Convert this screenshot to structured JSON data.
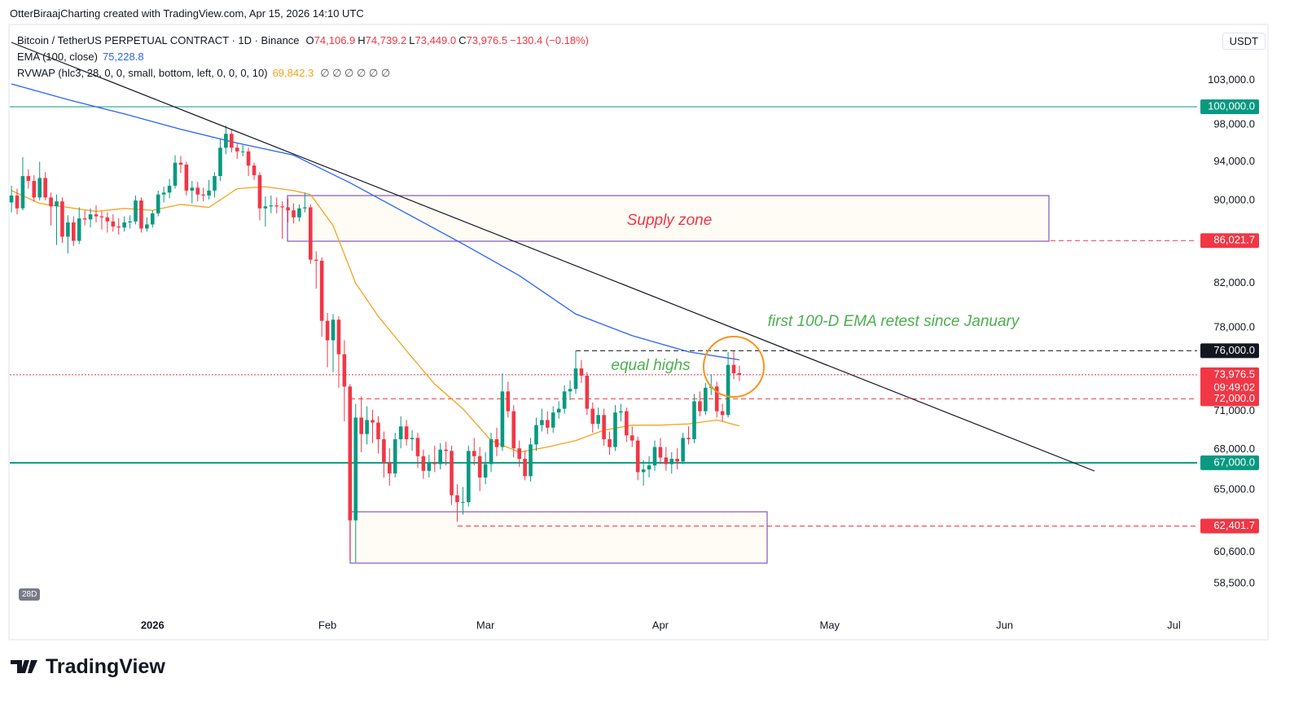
{
  "header": "OtterBiraajCharting created with TradingView.com, Apr 15, 2026 14:10 UTC",
  "chart_data": {
    "type": "candlestick",
    "symbol": "Bitcoin / TetherUS PERPETUAL CONTRACT · 1D · Binance",
    "ohlc_legend": [
      {
        "key": "O",
        "value": "74,106.9"
      },
      {
        "key": "H",
        "value": "74,739.2"
      },
      {
        "key": "L",
        "value": "73,449.0"
      },
      {
        "key": "C",
        "value": "73,976.5"
      }
    ],
    "change": "−130.4 (−0.18%)",
    "currency": "USDT",
    "badge": "28D",
    "up_color": "#089981",
    "down_color": "#f23645",
    "log_scale": true,
    "ohlc": [
      [
        89800,
        91500,
        88800,
        90500
      ],
      [
        90500,
        91200,
        88600,
        89200
      ],
      [
        89200,
        94500,
        89000,
        92500
      ],
      [
        92500,
        93200,
        91200,
        92000
      ],
      [
        92000,
        92600,
        89900,
        90300
      ],
      [
        90300,
        94000,
        90000,
        92300
      ],
      [
        92300,
        92900,
        90000,
        90300
      ],
      [
        90300,
        90800,
        87500,
        89400
      ],
      [
        89400,
        90600,
        85600,
        89900
      ],
      [
        89900,
        90300,
        85800,
        86400
      ],
      [
        86400,
        88500,
        84800,
        87800
      ],
      [
        87800,
        88400,
        85500,
        86000
      ],
      [
        86000,
        89300,
        85700,
        88200
      ],
      [
        88200,
        89000,
        87500,
        88100
      ],
      [
        88100,
        89200,
        87300,
        88600
      ],
      [
        88600,
        89500,
        87800,
        88400
      ],
      [
        88400,
        88900,
        87100,
        88300
      ],
      [
        88300,
        88800,
        86800,
        87900
      ],
      [
        87900,
        88600,
        86900,
        87400
      ],
      [
        87400,
        88200,
        86600,
        87300
      ],
      [
        87300,
        88400,
        86900,
        87800
      ],
      [
        87800,
        88500,
        87200,
        87900
      ],
      [
        87900,
        90500,
        87600,
        90000
      ],
      [
        90000,
        90300,
        86800,
        87200
      ],
      [
        87200,
        88300,
        86900,
        87600
      ],
      [
        87600,
        89000,
        87300,
        88700
      ],
      [
        88700,
        91000,
        88400,
        90600
      ],
      [
        90600,
        91400,
        89800,
        90800
      ],
      [
        90800,
        92200,
        90200,
        91500
      ],
      [
        91500,
        94700,
        91200,
        93900
      ],
      [
        93900,
        94600,
        92800,
        93700
      ],
      [
        93700,
        94000,
        90500,
        91000
      ],
      [
        91000,
        92000,
        89700,
        91300
      ],
      [
        91300,
        91900,
        89900,
        90600
      ],
      [
        90600,
        91300,
        89900,
        90500
      ],
      [
        90500,
        92100,
        90100,
        91000
      ],
      [
        91000,
        92900,
        90300,
        92500
      ],
      [
        92500,
        96400,
        92000,
        95500
      ],
      [
        95500,
        97900,
        94800,
        97000
      ],
      [
        97000,
        97500,
        95000,
        95500
      ],
      [
        95500,
        96000,
        94300,
        95100
      ],
      [
        95100,
        95800,
        94600,
        95100
      ],
      [
        95100,
        95500,
        92500,
        93600
      ],
      [
        93600,
        93900,
        92100,
        92600
      ],
      [
        92600,
        92900,
        88000,
        89200
      ],
      [
        89200,
        90400,
        87400,
        89400
      ],
      [
        89400,
        90500,
        88700,
        89500
      ],
      [
        89500,
        90300,
        88700,
        89400
      ],
      [
        89400,
        89900,
        86200,
        89300
      ],
      [
        89300,
        90200,
        87800,
        89000
      ],
      [
        89000,
        89700,
        87700,
        88300
      ],
      [
        88300,
        89600,
        87900,
        89200
      ],
      [
        89200,
        90800,
        88800,
        89300
      ],
      [
        89300,
        89600,
        83800,
        84200
      ],
      [
        84200,
        85000,
        81500,
        84100
      ],
      [
        84100,
        84400,
        77200,
        78600
      ],
      [
        78600,
        79300,
        74600,
        76900
      ],
      [
        76900,
        79200,
        74200,
        78700
      ],
      [
        78700,
        79000,
        72900,
        75700
      ],
      [
        75700,
        76900,
        70200,
        73000
      ],
      [
        73000,
        73200,
        60100,
        62800
      ],
      [
        62800,
        71600,
        59900,
        70500
      ],
      [
        70500,
        72200,
        67800,
        69200
      ],
      [
        69200,
        71400,
        68400,
        70300
      ],
      [
        70300,
        71100,
        68500,
        70100
      ],
      [
        70100,
        70600,
        67700,
        68800
      ],
      [
        68800,
        69400,
        65900,
        67000
      ],
      [
        67000,
        68100,
        65300,
        66200
      ],
      [
        66200,
        69300,
        65900,
        68800
      ],
      [
        68800,
        70600,
        68100,
        69800
      ],
      [
        69800,
        70300,
        68300,
        68800
      ],
      [
        68800,
        69500,
        67900,
        68900
      ],
      [
        68900,
        69300,
        66600,
        67500
      ],
      [
        67500,
        68000,
        65800,
        66400
      ],
      [
        66400,
        67600,
        65900,
        67000
      ],
      [
        67000,
        68300,
        66300,
        66900
      ],
      [
        66900,
        68500,
        66500,
        68000
      ],
      [
        68000,
        68600,
        66800,
        67900
      ],
      [
        67900,
        68300,
        63900,
        64600
      ],
      [
        64600,
        65400,
        62700,
        64100
      ],
      [
        64100,
        65200,
        63200,
        64100
      ],
      [
        64100,
        68300,
        63800,
        67900
      ],
      [
        67900,
        68900,
        66800,
        67500
      ],
      [
        67500,
        68200,
        64900,
        65900
      ],
      [
        65900,
        67800,
        65400,
        66900
      ],
      [
        66900,
        69300,
        66300,
        68800
      ],
      [
        68800,
        69700,
        67500,
        68200
      ],
      [
        68200,
        74100,
        67900,
        72600
      ],
      [
        72600,
        73400,
        70500,
        71000
      ],
      [
        71000,
        71500,
        67400,
        68100
      ],
      [
        68100,
        68700,
        66700,
        67300
      ],
      [
        67300,
        67900,
        65700,
        66000
      ],
      [
        66000,
        68900,
        65600,
        68400
      ],
      [
        68400,
        70500,
        67900,
        69900
      ],
      [
        69900,
        71200,
        69400,
        70300
      ],
      [
        70300,
        71000,
        69200,
        69700
      ],
      [
        69700,
        71400,
        69300,
        70900
      ],
      [
        70900,
        71800,
        70400,
        71200
      ],
      [
        71200,
        73100,
        70800,
        72600
      ],
      [
        72600,
        73500,
        71900,
        72800
      ],
      [
        72800,
        76000,
        72400,
        74500
      ],
      [
        74500,
        75200,
        73300,
        73900
      ],
      [
        73900,
        74200,
        70700,
        71200
      ],
      [
        71200,
        71700,
        69300,
        70000
      ],
      [
        70000,
        71300,
        69600,
        70700
      ],
      [
        70700,
        71200,
        68300,
        68800
      ],
      [
        68800,
        69400,
        67600,
        68200
      ],
      [
        68200,
        71500,
        67900,
        70900
      ],
      [
        70900,
        71600,
        70200,
        71000
      ],
      [
        71000,
        71300,
        68600,
        69100
      ],
      [
        69100,
        69800,
        68200,
        68700
      ],
      [
        68700,
        69000,
        65700,
        66300
      ],
      [
        66300,
        67200,
        65300,
        66500
      ],
      [
        66500,
        67500,
        65900,
        66800
      ],
      [
        66800,
        68700,
        66400,
        68200
      ],
      [
        68200,
        68900,
        66900,
        67400
      ],
      [
        67400,
        68200,
        66400,
        66900
      ],
      [
        66900,
        67800,
        66200,
        67300
      ],
      [
        67300,
        68100,
        66500,
        67100
      ],
      [
        67100,
        69300,
        66900,
        68900
      ],
      [
        68900,
        69800,
        68400,
        68800
      ],
      [
        68800,
        72400,
        68500,
        71800
      ],
      [
        71800,
        72600,
        70600,
        71000
      ],
      [
        71000,
        73300,
        70700,
        72900
      ],
      [
        72900,
        74000,
        72300,
        73000
      ],
      [
        73000,
        73400,
        70500,
        71000
      ],
      [
        71000,
        71600,
        70200,
        70700
      ],
      [
        70700,
        75900,
        70500,
        74800
      ],
      [
        74800,
        76000,
        73600,
        74100
      ],
      [
        74106.9,
        74739.2,
        73449.0,
        73976.5
      ]
    ],
    "indicators": [
      {
        "name": "EMA (100, close)",
        "value_label": "75,228.8",
        "color": "#2962ff",
        "x": [
          0,
          10,
          20,
          30,
          40,
          50,
          60,
          70,
          80,
          90,
          100,
          110,
          120,
          129
        ],
        "values": [
          102600,
          100800,
          99200,
          97500,
          96000,
          94700,
          91800,
          88700,
          85700,
          82700,
          79200,
          77300,
          75900,
          75228.8
        ]
      },
      {
        "name": "RVWAP (hlc3, 28, 0, 0, small, bottom, left, 0, 0, 0, 10)",
        "value_label": "69,842.3",
        "extra": "∅ ∅ ∅ ∅ ∅ ∅",
        "color": "#f7a21b",
        "x": [
          0,
          5,
          10,
          15,
          20,
          25,
          30,
          35,
          40,
          45,
          50,
          53,
          57,
          61,
          65,
          70,
          75,
          80,
          85,
          90,
          95,
          100,
          105,
          110,
          115,
          120,
          125,
          129
        ],
        "values": [
          91000,
          89700,
          89300,
          88900,
          89200,
          89000,
          89600,
          89300,
          91200,
          91400,
          91000,
          90600,
          87500,
          82000,
          79000,
          76000,
          73200,
          71200,
          68700,
          67800,
          68200,
          68700,
          69500,
          69900,
          69900,
          70000,
          70300,
          69842.3
        ]
      }
    ],
    "xlim": [
      -0.3,
      209.4
    ],
    "xticks": [
      {
        "value": 25,
        "label": "2026"
      },
      {
        "value": 56,
        "label": "Feb"
      },
      {
        "value": 84,
        "label": "Mar"
      },
      {
        "value": 115,
        "label": "Apr"
      },
      {
        "value": 145,
        "label": "May"
      },
      {
        "value": 176,
        "label": "Jun"
      },
      {
        "value": 206,
        "label": "Jul"
      }
    ],
    "ylim": [
      56440,
      109700
    ],
    "yticks": [
      {
        "value": 103000,
        "label": "103,000.0"
      },
      {
        "value": 98000,
        "label": "98,000.0"
      },
      {
        "value": 94000,
        "label": "94,000.0"
      },
      {
        "value": 90000,
        "label": "90,000.0"
      },
      {
        "value": 82000,
        "label": "82,000.0"
      },
      {
        "value": 78000,
        "label": "78,000.0"
      },
      {
        "value": 71000,
        "label": "71,000.0"
      },
      {
        "value": 68000,
        "label": "68,000.0"
      },
      {
        "value": 65000,
        "label": "65,000.0"
      },
      {
        "value": 60600,
        "label": "60,600.0"
      },
      {
        "value": 58500,
        "label": "58,500.0"
      }
    ],
    "levels": [
      {
        "value": 100000,
        "label": "100,000.0",
        "color": "#089981",
        "style": "solid"
      },
      {
        "value": 86021.7,
        "label": "86,021.7",
        "color": "#f23645",
        "style": "dashed"
      },
      {
        "value": 76000,
        "label": "76,000.0",
        "color": "#131722",
        "style": "dashed"
      },
      {
        "value": 73976.5,
        "label": "73,976.5",
        "color": "#f23645",
        "style": "dotted",
        "countdown": "09:49:02"
      },
      {
        "value": 72000,
        "label": "72,000.0",
        "color": "#f23645",
        "style": "dashed"
      },
      {
        "value": 67000,
        "label": "67,000.0",
        "color": "#089981",
        "style": "thick"
      },
      {
        "value": 62401.7,
        "label": "62,401.7",
        "color": "#f23645",
        "style": "dashed"
      }
    ],
    "annotations": [
      {
        "text": "Supply zone",
        "color": "#f23645"
      },
      {
        "text": "first 100-D EMA retest since January",
        "color": "#4caf50"
      },
      {
        "text": "equal highs",
        "color": "#4caf50"
      }
    ]
  },
  "footer": "TradingView"
}
